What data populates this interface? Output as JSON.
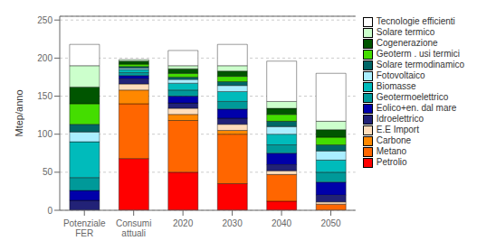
{
  "chart_data": {
    "type": "bar",
    "stacked": true,
    "grid": true,
    "legend": "right",
    "ylabel": "Mtep/anno",
    "categories": [
      "Potenziale\nFER",
      "Consumi\nattuali",
      "2020",
      "2030",
      "2040",
      "2050"
    ],
    "ylim": [
      0,
      255
    ],
    "yticks": [
      0,
      50,
      100,
      150,
      200,
      250
    ],
    "series": [
      {
        "name": "Petrolio",
        "color": "#ff0000",
        "values": [
          0,
          68,
          50,
          35,
          12,
          0
        ]
      },
      {
        "name": "Metano",
        "color": "#ff6600",
        "values": [
          0,
          72,
          68,
          65,
          35,
          8
        ]
      },
      {
        "name": "Carbone",
        "color": "#ff8800",
        "values": [
          0,
          18,
          8,
          5,
          0,
          0
        ]
      },
      {
        "name": "E.E Import",
        "color": "#ffddbb",
        "values": [
          0,
          8,
          8,
          8,
          5,
          3
        ]
      },
      {
        "name": "Idroelettrico",
        "color": "#222277",
        "values": [
          13,
          7,
          7,
          8,
          8,
          9
        ]
      },
      {
        "name": "Eolico+en. dal mare",
        "color": "#0000aa",
        "values": [
          13,
          4,
          9,
          12,
          15,
          17
        ]
      },
      {
        "name": "Geotermoelettrico",
        "color": "#009999",
        "values": [
          17,
          4,
          8,
          10,
          11,
          13
        ]
      },
      {
        "name": "Biomasse",
        "color": "#00bbbb",
        "values": [
          47,
          4,
          9,
          13,
          14,
          16
        ]
      },
      {
        "name": "Fotovoltaico",
        "color": "#aaeeff",
        "values": [
          13,
          2,
          5,
          8,
          10,
          12
        ]
      },
      {
        "name": "Solare termodinamico",
        "color": "#006666",
        "values": [
          10,
          2,
          3,
          5,
          7,
          8
        ]
      },
      {
        "name": "Geoterm . usi termici",
        "color": "#44dd00",
        "values": [
          27,
          3,
          5,
          7,
          9,
          10
        ]
      },
      {
        "name": "Cogenerazione",
        "color": "#005500",
        "values": [
          22,
          4,
          6,
          7,
          8,
          10
        ]
      },
      {
        "name": "Solare termico",
        "color": "#ccffcc",
        "values": [
          28,
          2,
          4,
          7,
          9,
          11
        ]
      },
      {
        "name": "Tecnologie efficienti",
        "color": "#ffffff",
        "values": [
          28,
          0,
          20,
          28,
          53,
          63
        ]
      }
    ]
  }
}
